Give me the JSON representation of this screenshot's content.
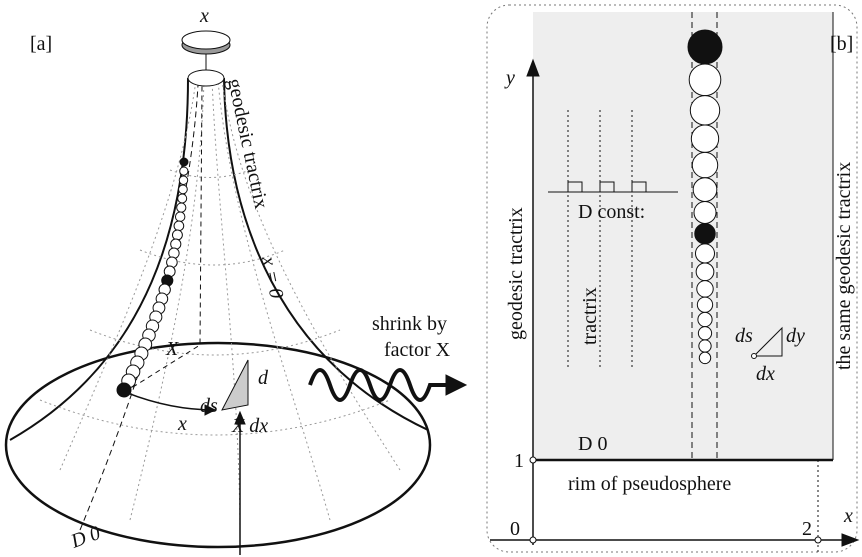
{
  "panel_a": {
    "label": "[a]",
    "top_axis": "x",
    "geodesic": "geodesic tractrix",
    "geodesic_eq": "x = 0",
    "shrink_line1": "shrink by",
    "shrink_line2": "factor X",
    "small_x": "X",
    "ds": "ds",
    "d": "d",
    "xdx": "X dx",
    "x": "x",
    "delta0": "D 0"
  },
  "panel_b": {
    "label": "[b]",
    "y": "y",
    "geodesic": "geodesic tractrix",
    "const": "D const:",
    "tractrix": "tractrix",
    "ds": "ds",
    "dy": "dy",
    "dx": "dx",
    "same": "the same geodesic tractrix",
    "delta0": "D 0",
    "one": "1",
    "rim": "rim of pseudosphere",
    "zero": "0",
    "two": "2",
    "x": "x"
  }
}
